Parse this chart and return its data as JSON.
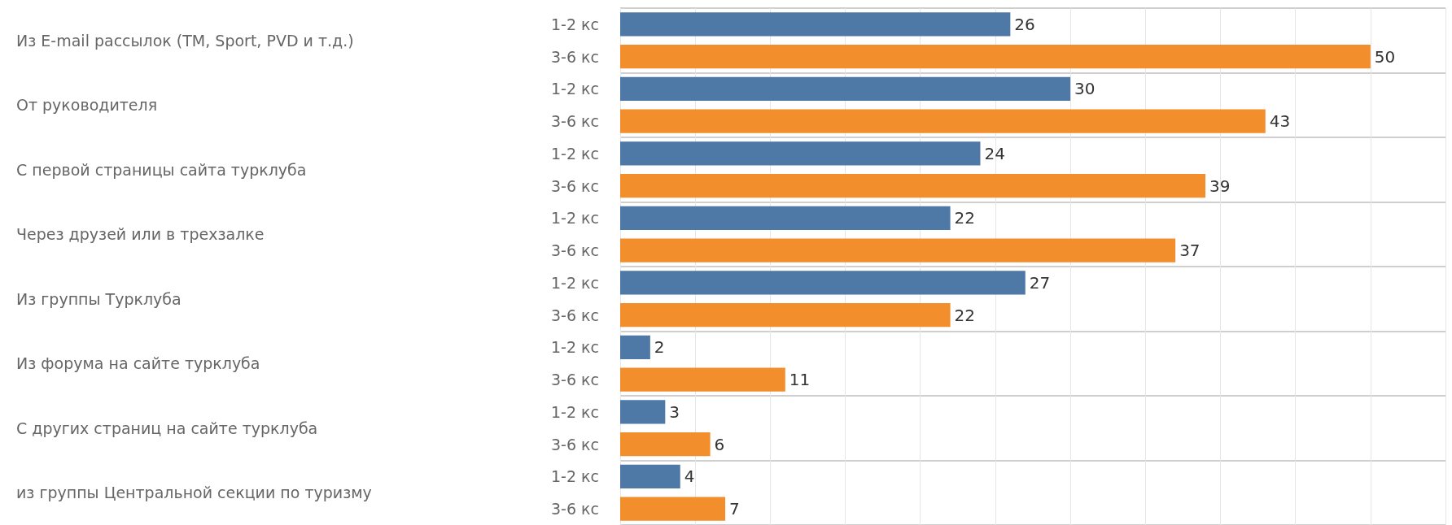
{
  "chart_data": {
    "type": "bar",
    "orientation": "horizontal",
    "categories": [
      "Из E-mail рассылок (TM, Sport, PVD и т.д.)",
      "От руководителя",
      "С первой страницы сайта турклуба",
      "Через друзей или в трехзалке",
      "Из группы Турклуба",
      "Из форума на сайте турклуба",
      "С других страниц на сайте турклуба",
      "из группы Центральной секции по туризму"
    ],
    "series": [
      {
        "name": "1-2 кс",
        "color": "#4e79a7",
        "values": [
          26,
          30,
          24,
          22,
          27,
          2,
          3,
          4
        ]
      },
      {
        "name": "3-6 кс",
        "color": "#f28e2b",
        "values": [
          50,
          43,
          39,
          37,
          22,
          11,
          6,
          7
        ]
      }
    ],
    "xlim": [
      0,
      55
    ],
    "xticks": [
      {
        "value": 0,
        "label": null
      },
      {
        "value": 5,
        "label": null
      },
      {
        "value": 10,
        "label": null
      },
      {
        "value": 15,
        "label": null
      },
      {
        "value": 20,
        "label": null
      },
      {
        "value": 25,
        "label": null
      },
      {
        "value": 30,
        "label": null
      },
      {
        "value": 35,
        "label": null
      },
      {
        "value": 40,
        "label": null
      },
      {
        "value": 45,
        "label": null
      },
      {
        "value": 50,
        "label": null
      },
      {
        "value": 55,
        "label": null
      }
    ],
    "tick_labels": "y",
    "grid": "x",
    "data_labels": true,
    "legend": false
  }
}
